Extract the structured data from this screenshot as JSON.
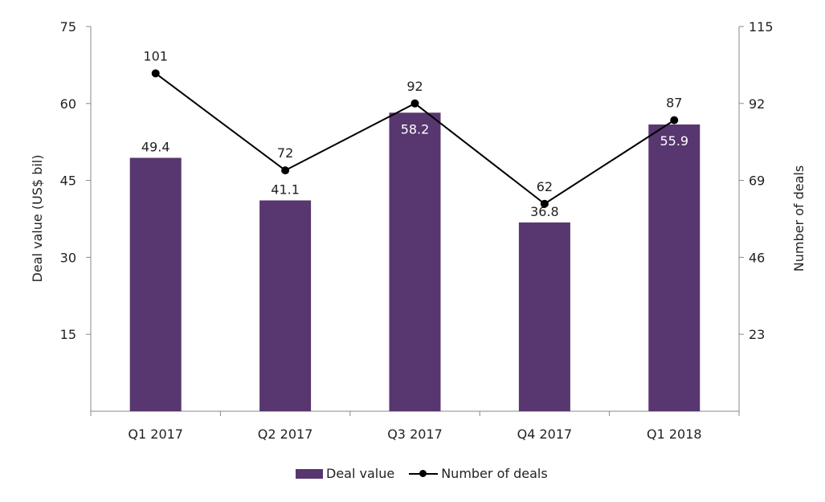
{
  "chart_data": {
    "type": "bar+line",
    "categories": [
      "Q1 2017",
      "Q2 2017",
      "Q3 2017",
      "Q4 2017",
      "Q1 2018"
    ],
    "series": [
      {
        "name": "Deal value",
        "type": "bar",
        "axis": "left",
        "values": [
          49.4,
          41.1,
          58.2,
          36.8,
          55.9
        ],
        "labels": [
          "49.4",
          "41.1",
          "58.2",
          "36.8",
          "55.9"
        ],
        "color": "#58366f"
      },
      {
        "name": "Number of deals",
        "type": "line",
        "axis": "right",
        "values": [
          101,
          72,
          92,
          62,
          87
        ],
        "labels": [
          "101",
          "72",
          "92",
          "62",
          "87"
        ],
        "color": "#000000"
      }
    ],
    "ylabel": "Deal value (US$ bil)",
    "y2label": "Number of deals",
    "ylim": [
      0,
      75
    ],
    "y2lim": [
      0,
      115
    ],
    "yticks": [
      "15",
      "30",
      "45",
      "60",
      "75"
    ],
    "yticks_values": [
      15,
      30,
      45,
      60,
      75
    ],
    "y2ticks": [
      "23",
      "46",
      "69",
      "92",
      "115"
    ],
    "y2ticks_values": [
      23,
      46,
      69,
      92,
      115
    ],
    "legend_position": "bottom"
  }
}
